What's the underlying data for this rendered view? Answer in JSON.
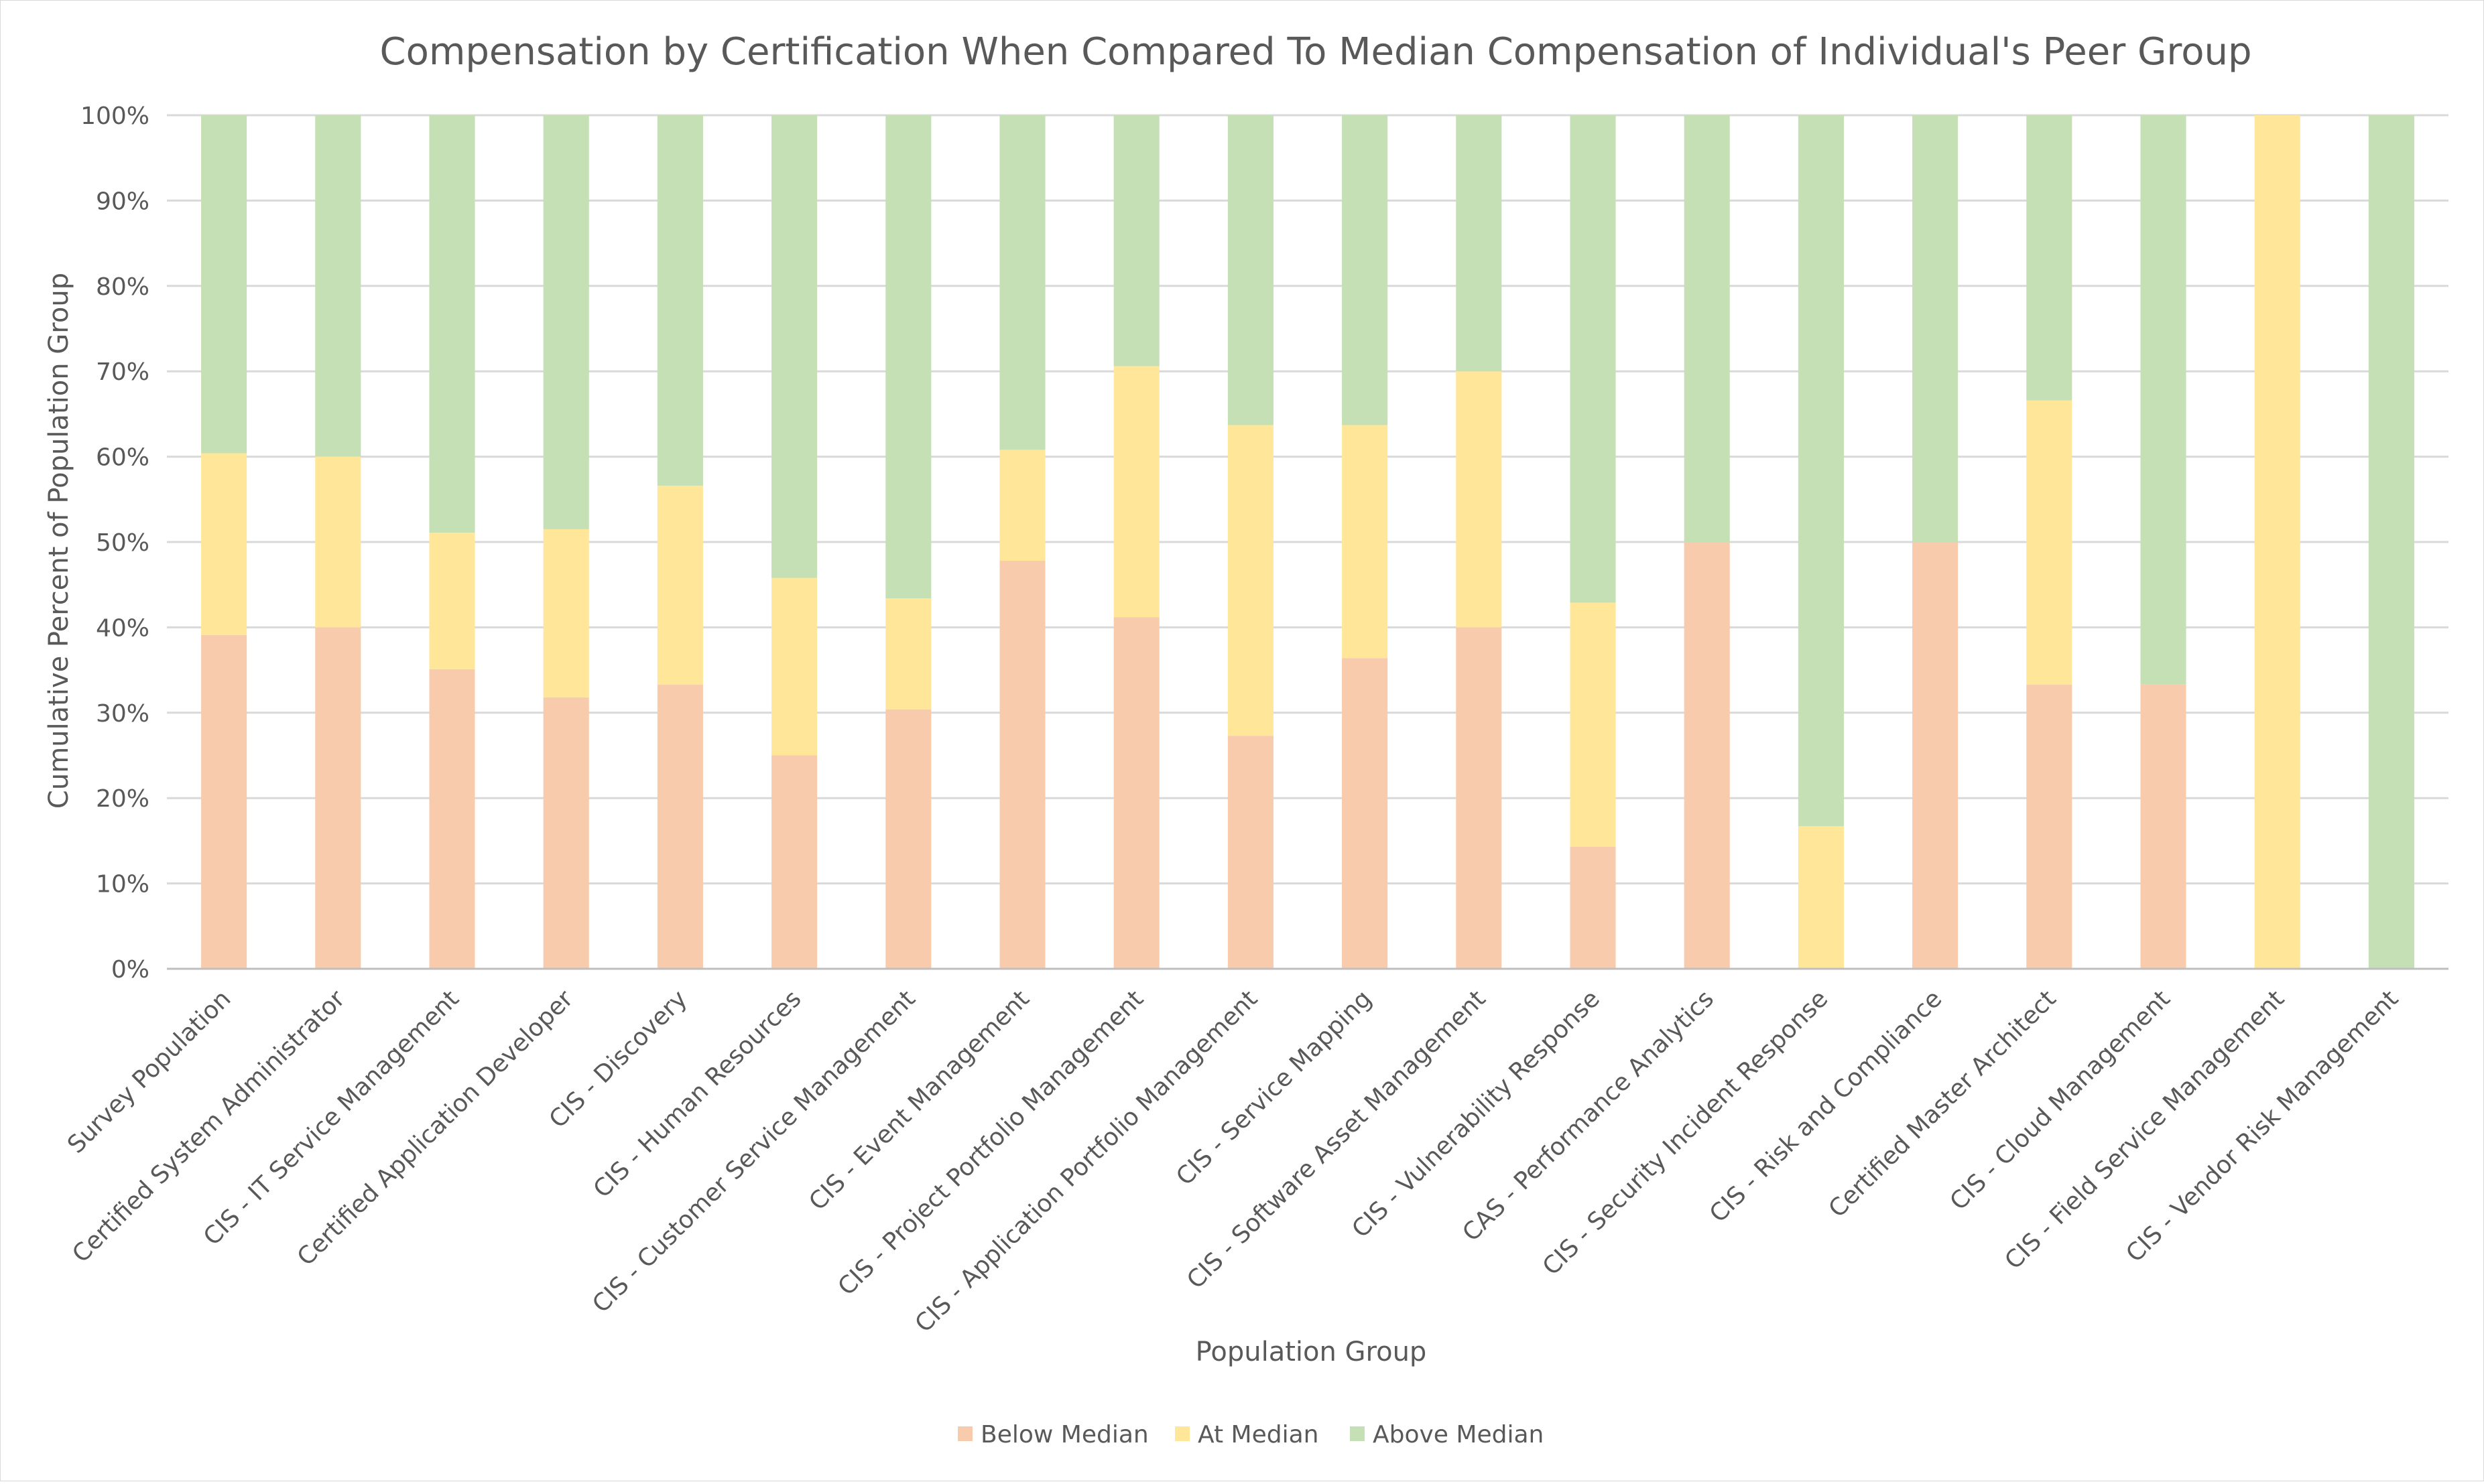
{
  "chart_data": {
    "type": "bar",
    "stacked": true,
    "title": "Compensation by Certification When Compared To Median Compensation of Individual's Peer Group",
    "xlabel": "Population Group",
    "ylabel": "Cumulative Percent of Population Group",
    "ylim": [
      0,
      100
    ],
    "yticks": [
      "0%",
      "10%",
      "20%",
      "30%",
      "40%",
      "50%",
      "60%",
      "70%",
      "80%",
      "90%",
      "100%"
    ],
    "grid": true,
    "legend_position": "bottom",
    "categories": [
      "Survey Population",
      "Certified System Administrator",
      "CIS - IT Service Management",
      "Certified Application Developer",
      "CIS - Discovery",
      "CIS - Human Resources",
      "CIS - Customer Service Management",
      "CIS - Event Management",
      "CIS - Project Portfolio Management",
      "CIS - Application Portfolio Management",
      "CIS - Service Mapping",
      "CIS - Software Asset Management",
      "CIS - Vulnerability Response",
      "CAS - Performance Analytics",
      "CIS - Security Incident Response",
      "CIS - Risk and Compliance",
      "Certified Master Architect",
      "CIS - Cloud Management",
      "CIS - Field Service Management",
      "CIS - Vendor Risk Management"
    ],
    "series": [
      {
        "name": "Below Median",
        "color": "#f8cbad",
        "values": [
          39.1,
          40.0,
          35.1,
          31.8,
          33.3,
          25.0,
          30.4,
          47.8,
          41.2,
          27.3,
          36.4,
          40.0,
          14.3,
          50.0,
          0.0,
          50.0,
          33.3,
          33.3,
          0.0,
          0.0
        ]
      },
      {
        "name": "At Median",
        "color": "#ffe699",
        "values": [
          21.3,
          20.0,
          16.0,
          19.7,
          23.3,
          20.8,
          13.0,
          13.0,
          29.4,
          36.4,
          27.3,
          30.0,
          28.6,
          0.0,
          16.7,
          0.0,
          33.3,
          0.0,
          100.0,
          0.0
        ]
      },
      {
        "name": "Above Median",
        "color": "#c5e0b4",
        "values": [
          39.6,
          40.0,
          48.9,
          48.5,
          43.4,
          54.2,
          56.6,
          39.2,
          29.4,
          36.3,
          36.3,
          30.0,
          57.1,
          50.0,
          83.3,
          50.0,
          33.4,
          66.7,
          0.0,
          100.0
        ]
      }
    ]
  }
}
